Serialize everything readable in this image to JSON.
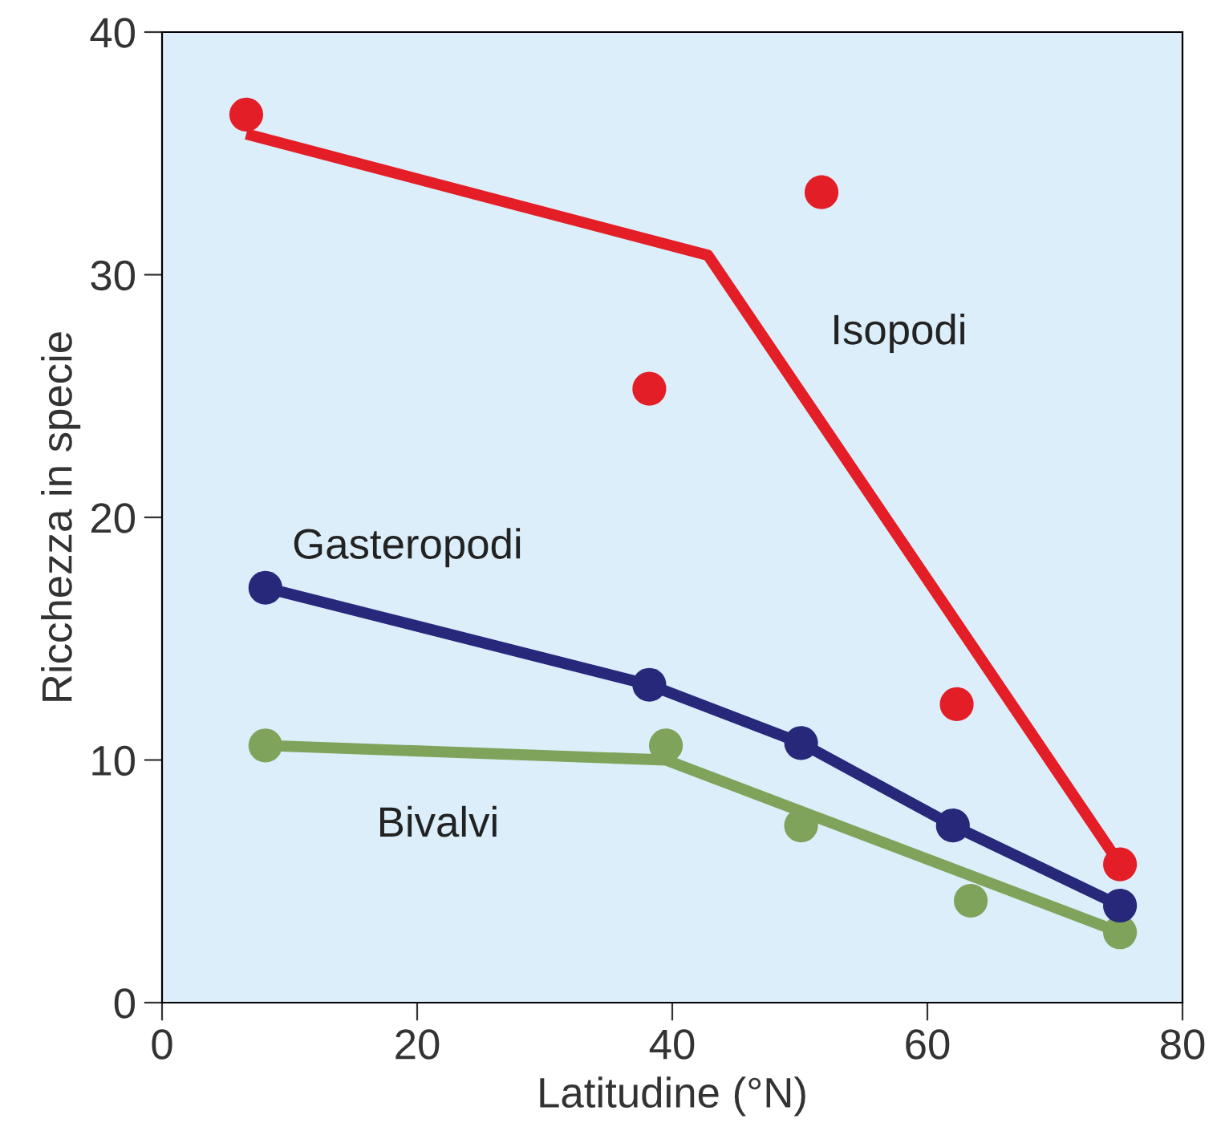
{
  "chart_data": {
    "type": "line",
    "xlabel": "Latitudine (°N)",
    "ylabel": "Ricchezza in specie",
    "xlim": [
      0,
      80
    ],
    "ylim": [
      0,
      40
    ],
    "xticks": [
      0,
      20,
      40,
      60,
      80
    ],
    "yticks": [
      0,
      10,
      20,
      30,
      40
    ],
    "grid": false,
    "legend": false,
    "series": [
      {
        "name": "Bivalvi",
        "color": "#7fa35a",
        "marker": "none",
        "x": [
          8.1,
          39.5,
          75.1
        ],
        "values": [
          10.6,
          10.0,
          2.9
        ]
      },
      {
        "type": "scatter",
        "color": "#7fa35a",
        "marker": "circle",
        "x": [
          8.1,
          39.5,
          50.1,
          63.4,
          75.1
        ],
        "values": [
          10.6,
          10.6,
          7.3,
          4.2,
          2.9
        ]
      },
      {
        "name": "Gasteropodi",
        "color": "#28287a",
        "marker": "none",
        "x": [
          8.1,
          38.2,
          50.1,
          62.0,
          75.1
        ],
        "values": [
          17.1,
          13.1,
          10.7,
          7.3,
          4.0
        ]
      },
      {
        "type": "scatter",
        "color": "#28287a",
        "marker": "circle",
        "x": [
          8.1,
          38.2,
          50.1,
          62.0,
          75.1
        ],
        "values": [
          17.1,
          13.1,
          10.7,
          7.3,
          4.0
        ]
      },
      {
        "name": "Isopodi",
        "color": "#e41e26",
        "marker": "none",
        "x": [
          6.6,
          42.8,
          75.1
        ],
        "values": [
          35.8,
          30.8,
          5.7
        ]
      },
      {
        "type": "scatter",
        "color": "#e41e26",
        "marker": "circle",
        "x": [
          6.6,
          38.2,
          51.7,
          62.3,
          75.1
        ],
        "values": [
          36.6,
          25.3,
          33.4,
          12.3,
          5.7
        ]
      }
    ]
  }
}
